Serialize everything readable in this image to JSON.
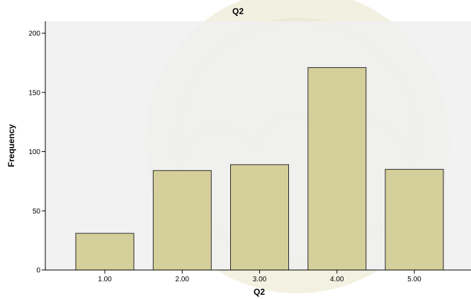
{
  "chart_data": {
    "type": "bar",
    "title": "Q2",
    "xlabel": "Q2",
    "ylabel": "Frequency",
    "categories": [
      "1.00",
      "2.00",
      "3.00",
      "4.00",
      "5.00"
    ],
    "values": [
      31,
      84,
      89,
      171,
      85
    ],
    "ylim": [
      0,
      200
    ],
    "yticks": [
      0,
      50,
      100,
      150,
      200
    ],
    "grid": false,
    "colors": {
      "plot_bg": "#f0f0f0",
      "bar_fill": "#d2cc94",
      "bar_stroke": "#2a2a2a"
    }
  }
}
